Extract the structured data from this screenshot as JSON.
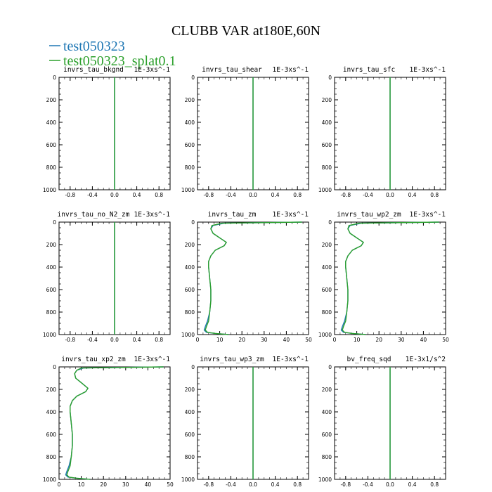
{
  "title": "CLUBB VAR at180E,60N",
  "colors": {
    "series1": "#1f77b4",
    "series2": "#2ca02c",
    "axis": "#000000"
  },
  "legend": [
    {
      "label": "test050323",
      "color": "#1f77b4"
    },
    {
      "label": "test050323_splat0.1",
      "color": "#2ca02c"
    }
  ],
  "y_ticks": [
    0,
    200,
    400,
    600,
    800,
    1000
  ],
  "chart_data": [
    {
      "type": "line",
      "title": "invrs_tau_bkgnd",
      "units": "1E-3xs^-1",
      "xlim": [
        -1,
        1
      ],
      "ylim": [
        1000,
        0
      ],
      "x_ticks": [
        "-0.8",
        "-0.4",
        "0.0",
        "0.4",
        "0.8"
      ],
      "x_tick_values": [
        -0.8,
        -0.4,
        0.0,
        0.4,
        0.8
      ],
      "series": [
        {
          "name": "test050323",
          "x": [
            0,
            0
          ],
          "y": [
            0,
            1000
          ]
        },
        {
          "name": "test050323_splat0.1",
          "x": [
            0,
            0
          ],
          "y": [
            0,
            1000
          ]
        }
      ]
    },
    {
      "type": "line",
      "title": "invrs_tau_shear",
      "units": "1E-3xs^-1",
      "xlim": [
        -1,
        1
      ],
      "ylim": [
        1000,
        0
      ],
      "x_ticks": [
        "-0.8",
        "-0.4",
        "0.0",
        "0.4",
        "0.8"
      ],
      "x_tick_values": [
        -0.8,
        -0.4,
        0.0,
        0.4,
        0.8
      ],
      "series": [
        {
          "name": "test050323",
          "x": [
            0,
            0
          ],
          "y": [
            0,
            1000
          ]
        },
        {
          "name": "test050323_splat0.1",
          "x": [
            0,
            0
          ],
          "y": [
            0,
            1000
          ]
        }
      ]
    },
    {
      "type": "line",
      "title": "invrs_tau_sfc",
      "units": "1E-3xs^-1",
      "xlim": [
        -1,
        1
      ],
      "ylim": [
        1000,
        0
      ],
      "x_ticks": [
        "-0.8",
        "-0.4",
        "0.0",
        "0.4",
        "0.8"
      ],
      "x_tick_values": [
        -0.8,
        -0.4,
        0.0,
        0.4,
        0.8
      ],
      "series": [
        {
          "name": "test050323",
          "x": [
            0,
            0
          ],
          "y": [
            0,
            1000
          ]
        },
        {
          "name": "test050323_splat0.1",
          "x": [
            0,
            0
          ],
          "y": [
            0,
            1000
          ]
        }
      ]
    },
    {
      "type": "line",
      "title": "invrs_tau_no_N2_zm",
      "units": "1E-3xs^-1",
      "xlim": [
        -1,
        1
      ],
      "ylim": [
        1000,
        0
      ],
      "x_ticks": [
        "-0.8",
        "-0.4",
        "0.0",
        "0.4",
        "0.8"
      ],
      "x_tick_values": [
        -0.8,
        -0.4,
        0.0,
        0.4,
        0.8
      ],
      "series": [
        {
          "name": "test050323",
          "x": [
            0,
            0
          ],
          "y": [
            0,
            1000
          ]
        },
        {
          "name": "test050323_splat0.1",
          "x": [
            0,
            0
          ],
          "y": [
            0,
            1000
          ]
        }
      ]
    },
    {
      "type": "line",
      "title": "invrs_tau_zm",
      "units": "1E-3xs^-1",
      "xlim": [
        0,
        50
      ],
      "ylim": [
        1000,
        0
      ],
      "x_ticks": [
        "0",
        "10",
        "20",
        "30",
        "40",
        "50"
      ],
      "x_tick_values": [
        0,
        10,
        20,
        30,
        40,
        50
      ],
      "series": [
        {
          "name": "test050323",
          "x": [
            47,
            12,
            7,
            6,
            7,
            10,
            13,
            12,
            8,
            6,
            5,
            5,
            5.5,
            6,
            6,
            5.5,
            4.5,
            3.5,
            3,
            4,
            8,
            14
          ],
          "y": [
            0,
            10,
            30,
            60,
            100,
            140,
            180,
            210,
            250,
            300,
            350,
            400,
            500,
            600,
            700,
            800,
            880,
            930,
            960,
            980,
            990,
            1000
          ]
        },
        {
          "name": "test050323_splat0.1",
          "x": [
            47,
            11,
            6.5,
            6,
            7,
            10,
            13,
            12,
            8,
            6,
            5,
            5,
            5.5,
            6,
            6,
            5.5,
            5,
            4,
            3.5,
            4.5,
            8,
            14
          ],
          "y": [
            0,
            10,
            30,
            60,
            100,
            140,
            180,
            210,
            250,
            300,
            350,
            400,
            500,
            600,
            700,
            800,
            880,
            930,
            960,
            980,
            990,
            1000
          ]
        }
      ]
    },
    {
      "type": "line",
      "title": "invrs_tau_wp2_zm",
      "units": "1E-3xs^-1",
      "xlim": [
        0,
        50
      ],
      "ylim": [
        1000,
        0
      ],
      "x_ticks": [
        "0",
        "10",
        "20",
        "30",
        "40",
        "50"
      ],
      "x_tick_values": [
        0,
        10,
        20,
        30,
        40,
        50
      ],
      "series": [
        {
          "name": "test050323",
          "x": [
            47,
            12,
            7,
            6,
            7,
            10,
            13,
            12,
            8,
            6,
            5,
            5,
            5.5,
            6,
            6,
            5.5,
            4.5,
            3.5,
            3,
            4,
            8,
            14
          ],
          "y": [
            0,
            10,
            30,
            60,
            100,
            140,
            180,
            210,
            250,
            300,
            350,
            400,
            500,
            600,
            700,
            800,
            880,
            930,
            960,
            980,
            990,
            1000
          ]
        },
        {
          "name": "test050323_splat0.1",
          "x": [
            47,
            11,
            6.5,
            6,
            7,
            10,
            13,
            12,
            8,
            6,
            5,
            5,
            5.5,
            6,
            6,
            5.5,
            5,
            4,
            3.5,
            4.5,
            8,
            14
          ],
          "y": [
            0,
            10,
            30,
            60,
            100,
            140,
            180,
            210,
            250,
            300,
            350,
            400,
            500,
            600,
            700,
            800,
            880,
            930,
            960,
            980,
            990,
            1000
          ]
        }
      ]
    },
    {
      "type": "line",
      "title": "invrs_tau_xp2_zm",
      "units": "1E-3xs^-1",
      "xlim": [
        0,
        50
      ],
      "ylim": [
        1000,
        0
      ],
      "x_ticks": [
        "0",
        "10",
        "20",
        "30",
        "40",
        "50"
      ],
      "x_tick_values": [
        0,
        10,
        20,
        30,
        40,
        50
      ],
      "series": [
        {
          "name": "test050323",
          "x": [
            47,
            11,
            8,
            7,
            7.5,
            10,
            13,
            12,
            8,
            6,
            5,
            5,
            5.5,
            6,
            6,
            5.5,
            4.5,
            3.5,
            3,
            4,
            8,
            14
          ],
          "y": [
            0,
            10,
            30,
            60,
            100,
            140,
            190,
            220,
            260,
            300,
            350,
            400,
            500,
            600,
            700,
            800,
            880,
            930,
            960,
            980,
            990,
            1000
          ]
        },
        {
          "name": "test050323_splat0.1",
          "x": [
            47,
            10,
            8,
            7,
            7.5,
            10,
            13,
            12,
            8,
            6,
            5,
            5,
            5.5,
            6,
            6,
            5.5,
            5,
            4,
            3.5,
            4.5,
            8,
            14
          ],
          "y": [
            0,
            10,
            30,
            60,
            100,
            140,
            190,
            220,
            260,
            300,
            350,
            400,
            500,
            600,
            700,
            800,
            880,
            930,
            960,
            980,
            990,
            1000
          ]
        }
      ]
    },
    {
      "type": "line",
      "title": "invrs_tau_wp3_zm",
      "units": "1E-3xs^-1",
      "xlim": [
        -1,
        1
      ],
      "ylim": [
        1000,
        0
      ],
      "x_ticks": [
        "-0.8",
        "-0.4",
        "0.0",
        "0.4",
        "0.8"
      ],
      "x_tick_values": [
        -0.8,
        -0.4,
        0.0,
        0.4,
        0.8
      ],
      "series": [
        {
          "name": "test050323",
          "x": [
            0,
            0
          ],
          "y": [
            0,
            1000
          ]
        },
        {
          "name": "test050323_splat0.1",
          "x": [
            0,
            0
          ],
          "y": [
            0,
            1000
          ]
        }
      ]
    },
    {
      "type": "line",
      "title": "bv_freq_sqd",
      "units": "1E-3x1/s^2",
      "xlim": [
        -1,
        1
      ],
      "ylim": [
        1000,
        0
      ],
      "x_ticks": [
        "-0.8",
        "-0.4",
        "0.0",
        "0.4",
        "0.8"
      ],
      "x_tick_values": [
        -0.8,
        -0.4,
        0.0,
        0.4,
        0.8
      ],
      "series": [
        {
          "name": "test050323",
          "x": [
            0,
            0
          ],
          "y": [
            0,
            1000
          ]
        },
        {
          "name": "test050323_splat0.1",
          "x": [
            0,
            0
          ],
          "y": [
            0,
            1000
          ]
        }
      ]
    }
  ]
}
